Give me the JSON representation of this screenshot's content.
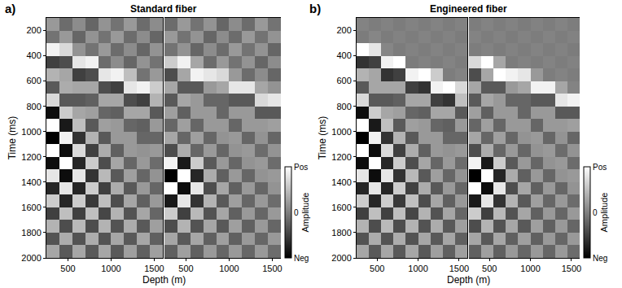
{
  "chart_data": [
    {
      "type": "heatmap",
      "label": "a)",
      "title": "Standard fiber",
      "xlabel": "Depth (m)",
      "ylabel": "Time (ms)",
      "color": "gray",
      "x": [
        325,
        475,
        625,
        775,
        925,
        1075,
        1225,
        1375,
        1525
      ],
      "y": [
        150,
        250,
        350,
        450,
        550,
        650,
        750,
        850,
        950,
        1050,
        1150,
        1250,
        1350,
        1450,
        1550,
        1650,
        1750,
        1850,
        1950
      ],
      "xlim": [
        250,
        1600
      ],
      "xticks": [
        500,
        1000,
        1500
      ],
      "ylim": [
        2000,
        100
      ],
      "yticks": [
        200,
        400,
        600,
        800,
        1000,
        1200,
        1400,
        1600,
        1800,
        2000
      ],
      "colorbar": {
        "title": "Amplitude",
        "zlim": [
          -1,
          1
        ],
        "ticks": [
          {
            "value": 1,
            "label": "Pos"
          },
          0,
          {
            "value": -1,
            "label": "Neg"
          }
        ]
      },
      "cells": [
        [
          [
            0.2,
            -0.15,
            0.1,
            -0.2,
            0.15,
            -0.1,
            0.2,
            -0.15,
            0.1
          ],
          [
            -0.1,
            0.2,
            -0.2,
            0.15,
            -0.1,
            0.2,
            -0.15,
            0.1,
            -0.2
          ],
          [
            0.9,
            0.7,
            0.15,
            -0.1,
            0.2,
            -0.15,
            0.1,
            -0.2,
            0.15
          ],
          [
            -0.5,
            -0.4,
            0.8,
            0.9,
            -0.15,
            0.1,
            -0.2,
            0.15,
            -0.1
          ],
          [
            0.4,
            0.3,
            -0.5,
            -0.4,
            0.8,
            0.9,
            0.5,
            -0.1,
            0.2
          ],
          [
            -0.3,
            0.35,
            0.3,
            0.3,
            -0.4,
            -0.5,
            0.8,
            0.9,
            0.6
          ],
          [
            0.7,
            -0.3,
            -0.3,
            -0.25,
            0.3,
            0.3,
            -0.4,
            -0.5,
            0.4
          ],
          [
            -0.9,
            0.6,
            0.3,
            0.25,
            -0.2,
            -0.25,
            0.3,
            0.3,
            -0.3
          ],
          [
            1.0,
            -0.8,
            0.5,
            -0.3,
            0.25,
            0.2,
            -0.2,
            -0.25,
            0.2
          ],
          [
            -1.0,
            0.9,
            -0.6,
            0.4,
            -0.3,
            0.2,
            0.2,
            -0.2,
            -0.2
          ],
          [
            1.0,
            -0.9,
            0.7,
            -0.5,
            0.35,
            -0.25,
            0.2,
            0.15,
            0.2
          ],
          [
            -0.9,
            1.0,
            -0.7,
            0.6,
            -0.4,
            0.3,
            -0.2,
            0.2,
            -0.15
          ],
          [
            0.8,
            -0.9,
            0.8,
            -0.6,
            0.45,
            -0.3,
            0.25,
            -0.2,
            0.15
          ],
          [
            -0.7,
            0.8,
            -0.7,
            0.6,
            -0.5,
            0.35,
            -0.3,
            0.2,
            -0.2
          ],
          [
            0.6,
            -0.7,
            0.6,
            -0.55,
            0.5,
            -0.4,
            0.3,
            -0.25,
            0.2
          ],
          [
            -0.5,
            0.5,
            -0.5,
            0.5,
            -0.45,
            0.4,
            -0.35,
            0.3,
            -0.2
          ],
          [
            0.4,
            -0.4,
            0.45,
            -0.4,
            0.4,
            -0.35,
            0.35,
            -0.3,
            0.25
          ],
          [
            -0.35,
            0.35,
            -0.35,
            0.35,
            -0.35,
            0.3,
            -0.3,
            0.3,
            -0.25
          ],
          [
            0.3,
            -0.3,
            0.3,
            -0.3,
            0.3,
            -0.3,
            0.25,
            -0.25,
            0.25
          ]
        ],
        [
          [
            -0.15,
            0.2,
            -0.1,
            0.15,
            -0.2,
            0.1,
            -0.15,
            0.2,
            -0.1
          ],
          [
            0.2,
            -0.1,
            0.15,
            -0.2,
            0.1,
            -0.15,
            0.2,
            -0.1,
            0.15
          ],
          [
            -0.1,
            0.15,
            -0.2,
            0.1,
            -0.15,
            0.2,
            -0.1,
            0.15,
            -0.2
          ],
          [
            0.6,
            0.9,
            0.3,
            -0.15,
            0.2,
            -0.1,
            0.15,
            -0.2,
            0.1
          ],
          [
            -0.4,
            0.3,
            0.9,
            0.8,
            0.7,
            0.2,
            -0.15,
            0.1,
            -0.2
          ],
          [
            0.3,
            -0.3,
            -0.3,
            0.2,
            0.3,
            0.8,
            0.8,
            0.3,
            0.15
          ],
          [
            -0.3,
            0.3,
            0.2,
            -0.2,
            -0.2,
            -0.3,
            -0.3,
            0.7,
            0.8
          ],
          [
            0.25,
            -0.25,
            0.2,
            0.2,
            -0.2,
            0.2,
            0.2,
            -0.3,
            -0.3
          ],
          [
            -0.2,
            0.25,
            -0.2,
            0.2,
            0.2,
            -0.2,
            0.2,
            0.2,
            0.25
          ],
          [
            0.3,
            -0.2,
            0.25,
            -0.2,
            0.15,
            0.2,
            -0.2,
            0.15,
            -0.2
          ],
          [
            -0.4,
            0.35,
            -0.2,
            0.2,
            -0.2,
            0.15,
            0.2,
            -0.15,
            0.15
          ],
          [
            0.9,
            -0.8,
            0.6,
            -0.3,
            0.2,
            -0.2,
            0.15,
            0.2,
            -0.15
          ],
          [
            -1.0,
            1.0,
            -0.7,
            0.35,
            -0.25,
            0.2,
            -0.2,
            0.15,
            0.2
          ],
          [
            1.0,
            -0.9,
            0.8,
            -0.4,
            0.3,
            -0.25,
            0.2,
            -0.2,
            0.15
          ],
          [
            -0.8,
            0.8,
            -0.6,
            0.4,
            -0.3,
            0.25,
            -0.2,
            0.2,
            -0.15
          ],
          [
            0.6,
            -0.5,
            0.45,
            -0.35,
            0.3,
            -0.25,
            0.2,
            -0.2,
            0.2
          ],
          [
            -0.4,
            0.4,
            -0.35,
            0.3,
            -0.3,
            0.25,
            -0.25,
            0.2,
            -0.2
          ],
          [
            0.3,
            -0.3,
            0.3,
            -0.25,
            0.25,
            -0.25,
            0.2,
            -0.2,
            0.2
          ],
          [
            -0.25,
            0.25,
            -0.25,
            0.2,
            -0.2,
            0.2,
            -0.2,
            0.2,
            -0.15
          ]
        ]
      ]
    },
    {
      "type": "heatmap",
      "label": "b)",
      "title": "Engineered fiber",
      "xlabel": "Depth (m)",
      "ylabel": "Time (ms)",
      "color": "gray",
      "x": [
        325,
        475,
        625,
        775,
        925,
        1075,
        1225,
        1375,
        1525
      ],
      "y": [
        150,
        250,
        350,
        450,
        550,
        650,
        750,
        850,
        950,
        1050,
        1150,
        1250,
        1350,
        1450,
        1550,
        1650,
        1750,
        1850,
        1950
      ],
      "xlim": [
        250,
        1600
      ],
      "xticks": [
        500,
        1000,
        1500
      ],
      "ylim": [
        2000,
        100
      ],
      "yticks": [
        200,
        400,
        600,
        800,
        1000,
        1200,
        1400,
        1600,
        1800,
        2000
      ],
      "colorbar": {
        "title": "Amplitude",
        "zlim": [
          -1,
          1
        ],
        "ticks": [
          {
            "value": 1,
            "label": "Pos"
          },
          0,
          {
            "value": -1,
            "label": "Neg"
          }
        ]
      },
      "cells": [
        [
          [
            0.03,
            -0.02,
            0.02,
            -0.03,
            0.02,
            -0.02,
            0.03,
            -0.02,
            0.02
          ],
          [
            -0.03,
            0.05,
            -0.03,
            0.02,
            -0.02,
            0.03,
            -0.02,
            0.02,
            -0.03
          ],
          [
            1.0,
            0.8,
            0.05,
            -0.03,
            0.02,
            -0.02,
            0.03,
            -0.02,
            0.02
          ],
          [
            -0.6,
            -0.5,
            0.9,
            1.0,
            -0.03,
            0.02,
            -0.02,
            0.03,
            -0.02
          ],
          [
            0.4,
            0.3,
            -0.6,
            -0.5,
            0.9,
            1.0,
            0.6,
            -0.02,
            0.03
          ],
          [
            -0.3,
            0.3,
            0.3,
            0.3,
            -0.5,
            -0.6,
            0.9,
            1.0,
            0.7
          ],
          [
            0.7,
            -0.3,
            -0.3,
            -0.25,
            0.3,
            0.3,
            -0.5,
            -0.6,
            0.5
          ],
          [
            -0.9,
            0.6,
            0.3,
            0.25,
            -0.2,
            -0.25,
            0.3,
            0.3,
            -0.3
          ],
          [
            1.0,
            -0.8,
            0.5,
            -0.3,
            0.25,
            0.2,
            -0.2,
            -0.25,
            0.2
          ],
          [
            -1.0,
            0.9,
            -0.6,
            0.4,
            -0.3,
            0.2,
            0.2,
            -0.2,
            -0.2
          ],
          [
            1.0,
            -0.9,
            0.7,
            -0.5,
            0.35,
            -0.25,
            0.2,
            0.15,
            0.2
          ],
          [
            -0.9,
            1.0,
            -0.7,
            0.6,
            -0.4,
            0.3,
            -0.2,
            0.2,
            -0.15
          ],
          [
            0.8,
            -0.9,
            0.8,
            -0.6,
            0.45,
            -0.3,
            0.25,
            -0.2,
            0.15
          ],
          [
            -0.7,
            0.8,
            -0.7,
            0.6,
            -0.5,
            0.35,
            -0.3,
            0.2,
            -0.2
          ],
          [
            0.6,
            -0.7,
            0.6,
            -0.55,
            0.5,
            -0.4,
            0.3,
            -0.25,
            0.2
          ],
          [
            -0.5,
            0.5,
            -0.5,
            0.5,
            -0.45,
            0.4,
            -0.35,
            0.3,
            -0.2
          ],
          [
            0.4,
            -0.4,
            0.45,
            -0.4,
            0.4,
            -0.35,
            0.35,
            -0.3,
            0.25
          ],
          [
            -0.35,
            0.35,
            -0.35,
            0.35,
            -0.35,
            0.3,
            -0.3,
            0.3,
            -0.25
          ],
          [
            0.3,
            -0.3,
            0.3,
            -0.3,
            0.3,
            -0.3,
            0.25,
            -0.25,
            0.25
          ]
        ],
        [
          [
            -0.02,
            0.03,
            -0.02,
            0.02,
            -0.03,
            0.02,
            -0.02,
            0.03,
            -0.02
          ],
          [
            0.03,
            -0.02,
            0.02,
            -0.03,
            0.02,
            -0.02,
            0.03,
            -0.02,
            0.02
          ],
          [
            -0.02,
            0.02,
            -0.03,
            0.02,
            -0.02,
            0.03,
            -0.02,
            0.02,
            -0.03
          ],
          [
            0.7,
            1.0,
            0.3,
            -0.03,
            0.02,
            -0.02,
            0.03,
            -0.02,
            0.02
          ],
          [
            -0.4,
            0.3,
            1.0,
            0.9,
            0.8,
            0.2,
            -0.02,
            0.03,
            -0.02
          ],
          [
            0.3,
            -0.3,
            -0.3,
            0.2,
            0.3,
            0.9,
            0.9,
            0.3,
            0.03
          ],
          [
            -0.3,
            0.3,
            0.2,
            -0.2,
            -0.2,
            -0.3,
            -0.3,
            0.8,
            0.9
          ],
          [
            0.25,
            -0.25,
            0.2,
            0.2,
            -0.2,
            0.2,
            0.2,
            -0.3,
            -0.3
          ],
          [
            -0.2,
            0.25,
            -0.2,
            0.2,
            0.2,
            -0.2,
            0.2,
            0.2,
            0.25
          ],
          [
            0.3,
            -0.2,
            0.25,
            -0.2,
            0.15,
            0.2,
            -0.2,
            0.15,
            -0.2
          ],
          [
            -0.4,
            0.35,
            -0.2,
            0.2,
            -0.2,
            0.15,
            0.2,
            -0.15,
            0.15
          ],
          [
            0.9,
            -0.8,
            0.6,
            -0.3,
            0.2,
            -0.2,
            0.15,
            0.2,
            -0.15
          ],
          [
            -1.0,
            1.0,
            -0.7,
            0.35,
            -0.25,
            0.2,
            -0.2,
            0.15,
            0.2
          ],
          [
            1.0,
            -0.9,
            0.8,
            -0.4,
            0.3,
            -0.25,
            0.2,
            -0.2,
            0.15
          ],
          [
            -0.8,
            0.8,
            -0.6,
            0.4,
            -0.3,
            0.25,
            -0.2,
            0.2,
            -0.15
          ],
          [
            0.6,
            -0.5,
            0.45,
            -0.35,
            0.3,
            -0.25,
            0.2,
            -0.2,
            0.2
          ],
          [
            -0.4,
            0.4,
            -0.35,
            0.3,
            -0.3,
            0.25,
            -0.25,
            0.2,
            -0.2
          ],
          [
            0.3,
            -0.3,
            0.3,
            -0.25,
            0.25,
            -0.25,
            0.2,
            -0.2,
            0.2
          ],
          [
            -0.25,
            0.25,
            -0.25,
            0.2,
            -0.2,
            0.2,
            -0.2,
            0.2,
            -0.15
          ]
        ]
      ]
    }
  ]
}
